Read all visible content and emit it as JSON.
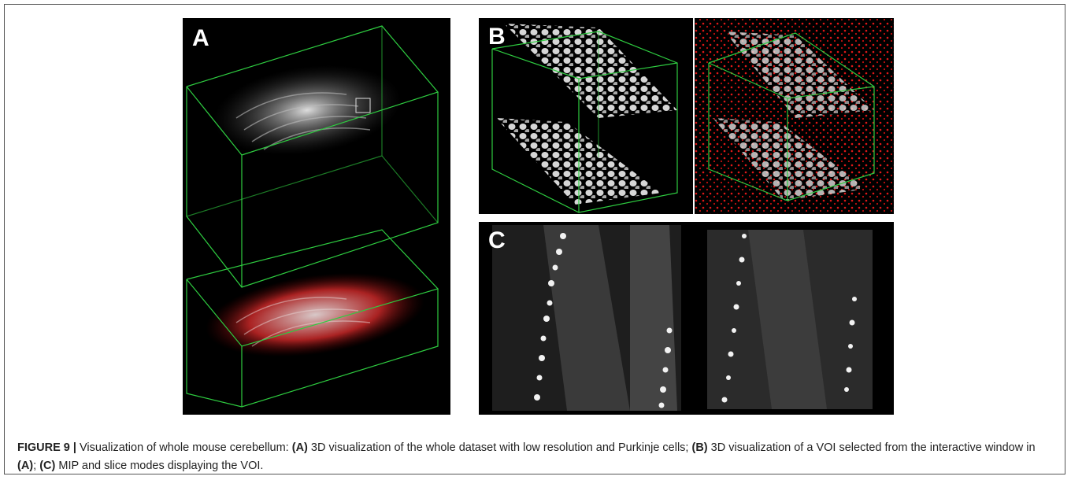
{
  "figure": {
    "panels": [
      {
        "label": "A"
      },
      {
        "label": "B"
      },
      {
        "label": "C"
      }
    ],
    "caption": [
      {
        "text": "FIGURE 9 |",
        "bold": true
      },
      {
        "text": " Visualization of whole mouse cerebellum: ",
        "bold": false
      },
      {
        "text": "(A)",
        "bold": true
      },
      {
        "text": " 3D visualization of the whole dataset with low resolution and Purkinje cells; ",
        "bold": false
      },
      {
        "text": "(B)",
        "bold": true
      },
      {
        "text": " 3D visualization of a VOI selected from the interactive window in ",
        "bold": false
      },
      {
        "text": "(A)",
        "bold": true
      },
      {
        "text": "; ",
        "bold": false
      },
      {
        "text": "(C)",
        "bold": true
      },
      {
        "text": " MIP and slice modes displaying the VOI.",
        "bold": false
      }
    ]
  }
}
